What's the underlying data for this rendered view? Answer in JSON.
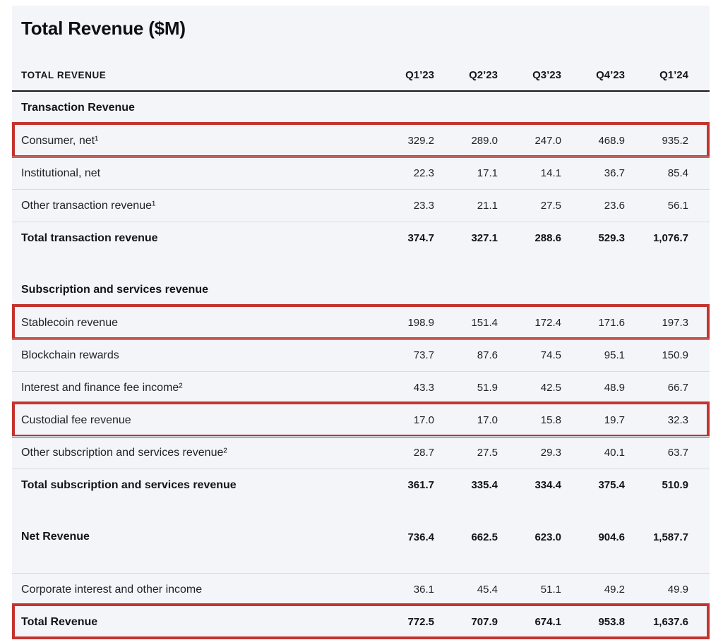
{
  "title": "Total Revenue ($M)",
  "colors": {
    "panel_background": "#f4f5f8",
    "highlight_border": "#c4342f",
    "header_rule": "#15171b",
    "row_divider": "#d9dbdf"
  },
  "table": {
    "header": {
      "label": "TOTAL REVENUE",
      "columns": [
        "Q1’23",
        "Q2’23",
        "Q3’23",
        "Q4’23",
        "Q1’24"
      ]
    },
    "sections": [
      {
        "heading": "Transaction Revenue",
        "rows": [
          {
            "label": "Consumer, net¹",
            "values": [
              "329.2",
              "289.0",
              "247.0",
              "468.9",
              "935.2"
            ],
            "bold": false,
            "highlight": true,
            "no_border": false
          },
          {
            "label": "Institutional, net",
            "values": [
              "22.3",
              "17.1",
              "14.1",
              "36.7",
              "85.4"
            ],
            "bold": false,
            "highlight": false,
            "no_border": false
          },
          {
            "label": "Other transaction revenue¹",
            "values": [
              "23.3",
              "21.1",
              "27.5",
              "23.6",
              "56.1"
            ],
            "bold": false,
            "highlight": false,
            "no_border": false
          },
          {
            "label": "Total transaction revenue",
            "values": [
              "374.7",
              "327.1",
              "288.6",
              "529.3",
              "1,076.7"
            ],
            "bold": true,
            "highlight": false,
            "no_border": false
          }
        ]
      },
      {
        "heading": "Subscription and services revenue",
        "rows": [
          {
            "label": "Stablecoin revenue",
            "values": [
              "198.9",
              "151.4",
              "172.4",
              "171.6",
              "197.3"
            ],
            "bold": false,
            "highlight": true,
            "no_border": false
          },
          {
            "label": "Blockchain rewards",
            "values": [
              "73.7",
              "87.6",
              "74.5",
              "95.1",
              "150.9"
            ],
            "bold": false,
            "highlight": false,
            "no_border": false
          },
          {
            "label": "Interest and finance fee income²",
            "values": [
              "43.3",
              "51.9",
              "42.5",
              "48.9",
              "66.7"
            ],
            "bold": false,
            "highlight": false,
            "no_border": false
          },
          {
            "label": "Custodial fee revenue",
            "values": [
              "17.0",
              "17.0",
              "15.8",
              "19.7",
              "32.3"
            ],
            "bold": false,
            "highlight": true,
            "no_border": false
          },
          {
            "label": "Other subscription and services revenue²",
            "values": [
              "28.7",
              "27.5",
              "29.3",
              "40.1",
              "63.7"
            ],
            "bold": false,
            "highlight": false,
            "no_border": false
          },
          {
            "label": "Total subscription and services revenue",
            "values": [
              "361.7",
              "335.4",
              "334.4",
              "375.4",
              "510.9"
            ],
            "bold": true,
            "highlight": false,
            "no_border": false
          }
        ]
      },
      {
        "heading": null,
        "rows": [
          {
            "label": "Net Revenue",
            "values": [
              "736.4",
              "662.5",
              "623.0",
              "904.6",
              "1,587.7"
            ],
            "bold": true,
            "highlight": false,
            "no_border": true
          }
        ]
      },
      {
        "heading": null,
        "rows": [
          {
            "label": "Corporate interest and other income",
            "values": [
              "36.1",
              "45.4",
              "51.1",
              "49.2",
              "49.9"
            ],
            "bold": false,
            "highlight": false,
            "no_border": false
          },
          {
            "label": "Total Revenue",
            "values": [
              "772.5",
              "707.9",
              "674.1",
              "953.8",
              "1,637.6"
            ],
            "bold": true,
            "highlight": true,
            "no_border": false
          }
        ]
      }
    ]
  }
}
